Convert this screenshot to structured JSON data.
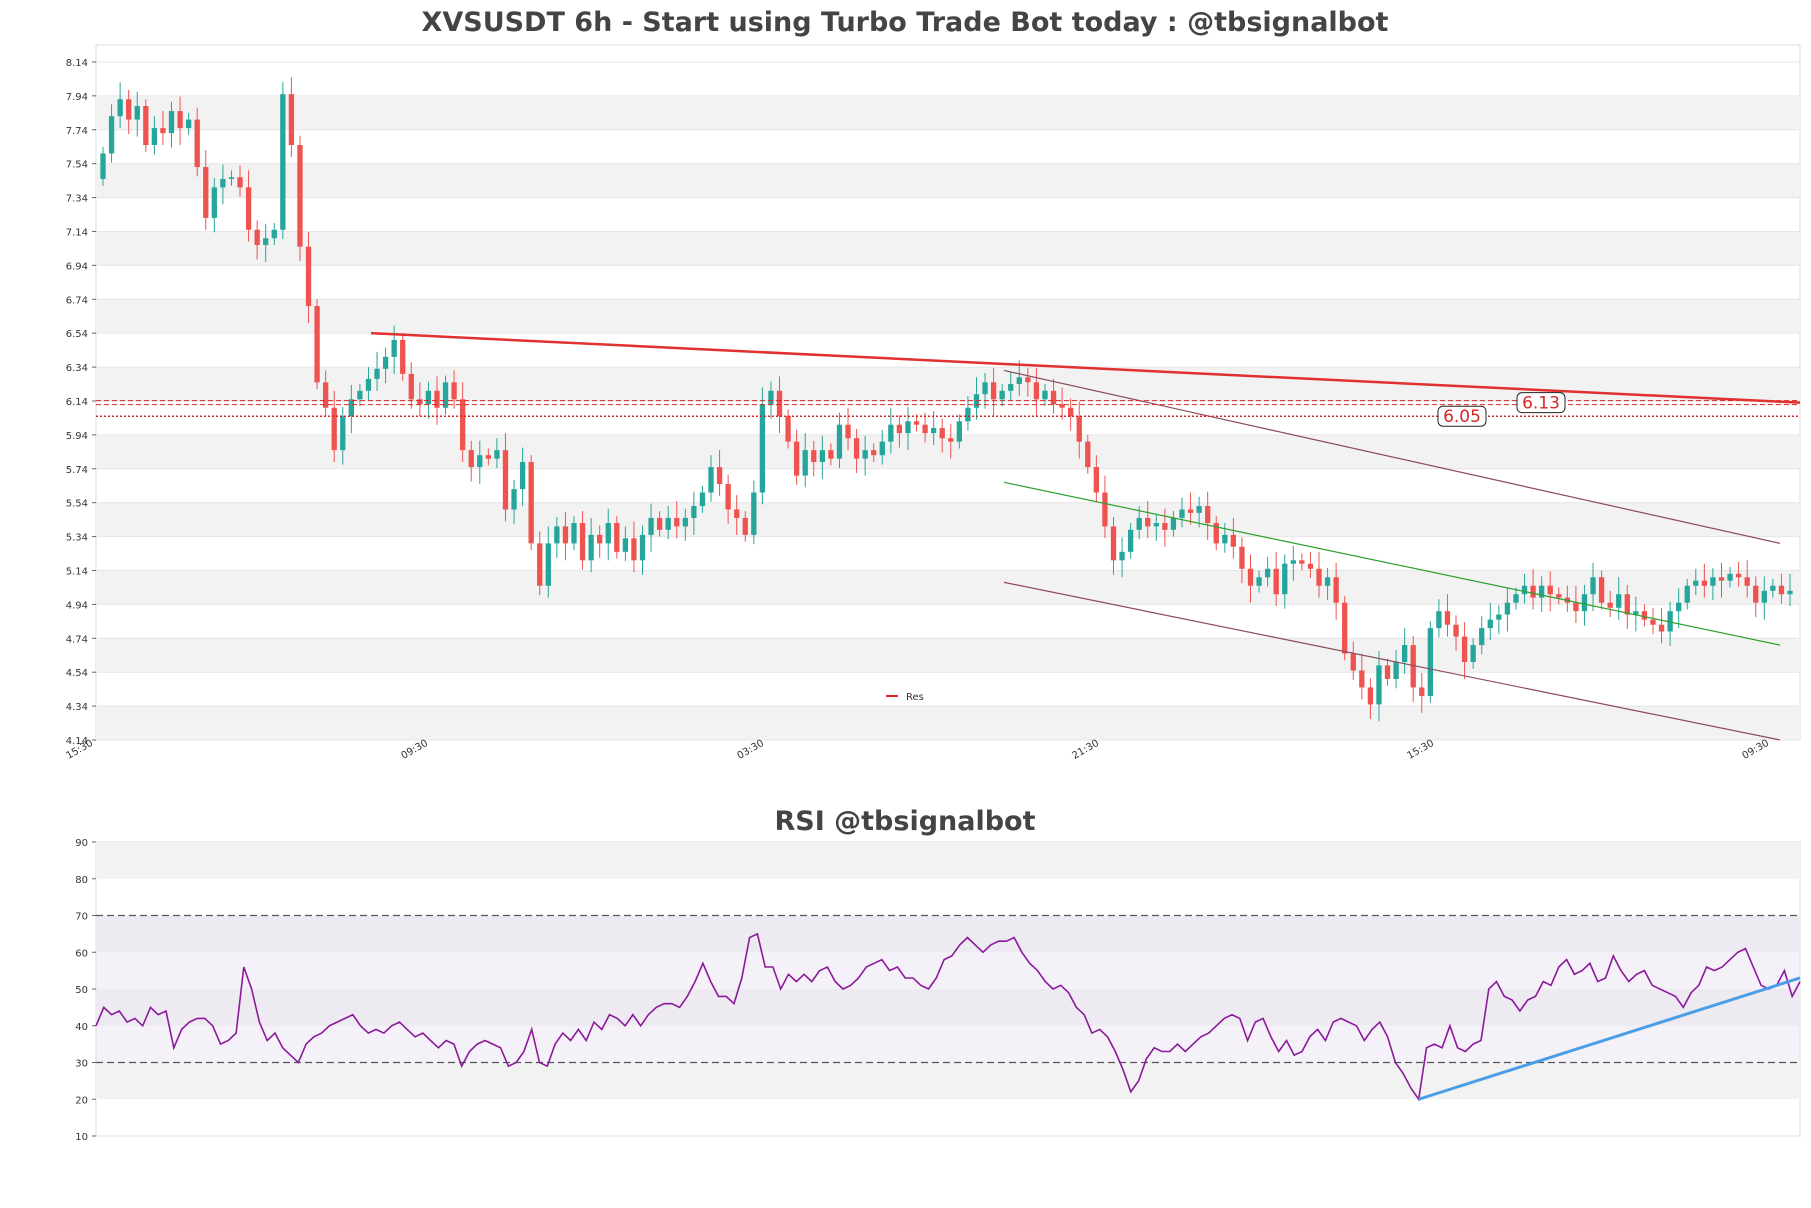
{
  "chart_data": [
    {
      "type": "candlestick",
      "title": "XVSUSDT 6h - Start using Turbo Trade Bot today : @tbsignalbot",
      "ylim": [
        4.14,
        8.24
      ],
      "y_ticks": [
        "8.14",
        "7.94",
        "7.74",
        "7.54",
        "7.34",
        "7.14",
        "6.94",
        "6.74",
        "6.54",
        "6.34",
        "6.14",
        "5.94",
        "5.74",
        "5.54",
        "5.34",
        "5.14",
        "4.94",
        "4.74",
        "4.54",
        "4.34",
        "4.14"
      ],
      "x_ticks": [
        "15:30",
        "09:30",
        "03:30",
        "21:30",
        "15:30",
        "09:30"
      ],
      "legend": {
        "placement": "bottom-center",
        "entries": [
          "Res"
        ]
      },
      "colors": {
        "up": "#26a69a",
        "down": "#ef5350",
        "resistance": "#d62728",
        "trend_line": "#e03030",
        "channel_mid": "#2ca02c",
        "channel_outer": "#8c4a5a"
      },
      "candles_close": [
        7.6,
        7.82,
        7.92,
        7.8,
        7.88,
        7.65,
        7.75,
        7.72,
        7.85,
        7.75,
        7.8,
        7.52,
        7.22,
        7.4,
        7.45,
        7.46,
        7.4,
        7.15,
        7.06,
        7.1,
        7.15,
        7.95,
        7.65,
        7.05,
        6.7,
        6.25,
        6.1,
        5.85,
        6.05,
        6.15,
        6.2,
        6.27,
        6.33,
        6.4,
        6.5,
        6.3,
        6.15,
        6.12,
        6.2,
        6.1,
        6.25,
        6.15,
        5.85,
        5.75,
        5.82,
        5.8,
        5.85,
        5.5,
        5.62,
        5.78,
        5.3,
        5.05,
        5.3,
        5.4,
        5.3,
        5.42,
        5.2,
        5.35,
        5.3,
        5.42,
        5.25,
        5.33,
        5.2,
        5.35,
        5.45,
        5.38,
        5.45,
        5.4,
        5.45,
        5.52,
        5.6,
        5.75,
        5.65,
        5.5,
        5.45,
        5.35,
        5.6,
        6.12,
        6.2,
        6.05,
        5.9,
        5.7,
        5.85,
        5.78,
        5.85,
        5.8,
        6.0,
        5.92,
        5.8,
        5.85,
        5.82,
        5.9,
        6.0,
        5.95,
        6.02,
        6.0,
        5.95,
        5.98,
        5.92,
        5.9,
        6.02,
        6.1,
        6.18,
        6.25,
        6.15,
        6.2,
        6.24,
        6.28,
        6.25,
        6.15,
        6.2,
        6.12,
        6.1,
        6.05,
        5.9,
        5.75,
        5.6,
        5.4,
        5.2,
        5.25,
        5.38,
        5.45,
        5.4,
        5.42,
        5.38,
        5.45,
        5.5,
        5.48,
        5.52,
        5.42,
        5.3,
        5.35,
        5.28,
        5.15,
        5.05,
        5.1,
        5.15,
        5.0,
        5.18,
        5.2,
        5.18,
        5.15,
        5.05,
        5.1,
        4.95,
        4.65,
        4.55,
        4.45,
        4.35,
        4.58,
        4.5,
        4.6,
        4.7,
        4.45,
        4.4,
        4.8,
        4.9,
        4.82,
        4.75,
        4.6,
        4.7,
        4.8,
        4.85,
        4.88,
        4.95,
        5.0,
        5.05,
        4.98,
        5.05,
        5.0,
        4.98,
        4.95,
        4.9,
        5.0,
        5.1,
        4.95,
        4.92,
        5.0,
        4.88,
        4.9,
        4.85,
        4.82,
        4.78,
        4.9,
        4.95,
        5.05,
        5.08,
        5.05,
        5.1,
        5.08,
        5.12,
        5.1,
        5.05,
        4.95,
        5.02,
        5.05,
        5.0,
        5.02
      ],
      "levels": [
        {
          "value": 6.13,
          "label": "6.13"
        },
        {
          "value": 6.05,
          "label": "6.05"
        }
      ]
    },
    {
      "type": "line",
      "title": "RSI @tbsignalbot",
      "ylim": [
        10,
        90
      ],
      "y_ticks": [
        "90",
        "80",
        "70",
        "60",
        "50",
        "40",
        "30",
        "20",
        "10"
      ],
      "overbought": 70,
      "oversold": 30,
      "rsi_values": [
        40,
        45,
        43,
        44,
        41,
        42,
        40,
        45,
        43,
        44,
        34,
        39,
        41,
        42,
        42,
        40,
        35,
        36,
        38,
        56,
        50,
        41,
        36,
        38,
        34,
        32,
        30,
        35,
        37,
        38,
        40,
        41,
        42,
        43,
        40,
        38,
        39,
        38,
        40,
        41,
        39,
        37,
        38,
        36,
        34,
        36,
        35,
        29,
        33,
        35,
        36,
        35,
        34,
        29,
        30,
        33,
        39,
        30,
        29,
        35,
        38,
        36,
        39,
        36,
        41,
        39,
        43,
        42,
        40,
        43,
        40,
        43,
        45,
        46,
        46,
        45,
        48,
        52,
        57,
        52,
        48,
        48,
        46,
        53,
        64,
        65,
        56,
        56,
        50,
        54,
        52,
        54,
        52,
        55,
        56,
        52,
        50,
        51,
        53,
        56,
        57,
        58,
        55,
        56,
        53,
        53,
        51,
        50,
        53,
        58,
        59,
        62,
        64,
        62,
        60,
        62,
        63,
        63,
        64,
        60,
        57,
        55,
        52,
        50,
        51,
        49,
        45,
        43,
        38,
        39,
        37,
        33,
        28,
        22,
        25,
        31,
        34,
        33,
        33,
        35,
        33,
        35,
        37,
        38,
        40,
        42,
        43,
        42,
        36,
        41,
        42,
        37,
        33,
        36,
        32,
        33,
        37,
        39,
        36,
        41,
        42,
        41,
        40,
        36,
        39,
        41,
        37,
        30,
        27,
        23,
        20,
        34,
        35,
        34,
        40,
        34,
        33,
        35,
        36,
        50,
        52,
        48,
        47,
        44,
        47,
        48,
        52,
        51,
        56,
        58,
        54,
        55,
        57,
        52,
        53,
        59,
        55,
        52,
        54,
        55,
        51,
        50,
        49,
        48,
        45,
        49,
        51,
        56,
        55,
        56,
        58,
        60,
        61,
        56,
        51,
        50,
        51,
        55,
        48,
        52
      ],
      "trend_line": {
        "from_value": 20,
        "to_value": 53
      }
    }
  ]
}
